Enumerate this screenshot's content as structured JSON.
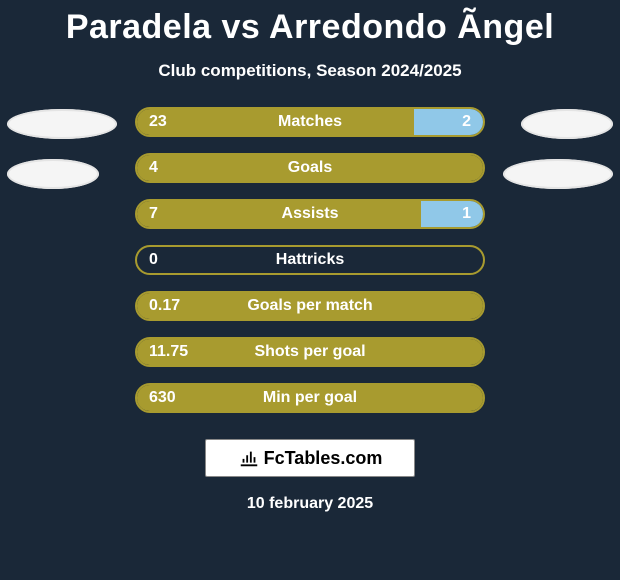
{
  "title": "Paradela vs Arredondo Ãngel",
  "subtitle": "Club competitions, Season 2024/2025",
  "date": "10 february 2025",
  "logo_text": "FcTables.com",
  "colors": {
    "background": "#1a2838",
    "player1_bar": "#a89b2f",
    "player2_bar": "#90c8e8",
    "bar_border_p1wins": "#a89b2f",
    "bar_border_tie": "#a89b2f",
    "text": "#ffffff"
  },
  "bars": [
    {
      "label": "Matches",
      "p1_val": "23",
      "p2_val": "2",
      "p1_width_pct": 80,
      "p2_width_pct": 20,
      "p2_visible": true
    },
    {
      "label": "Goals",
      "p1_val": "4",
      "p2_val": "",
      "p1_width_pct": 100,
      "p2_width_pct": 0,
      "p2_visible": false
    },
    {
      "label": "Assists",
      "p1_val": "7",
      "p2_val": "1",
      "p1_width_pct": 82,
      "p2_width_pct": 18,
      "p2_visible": true
    },
    {
      "label": "Hattricks",
      "p1_val": "0",
      "p2_val": "",
      "p1_width_pct": 0,
      "p2_width_pct": 0,
      "p2_visible": false
    },
    {
      "label": "Goals per match",
      "p1_val": "0.17",
      "p2_val": "",
      "p1_width_pct": 100,
      "p2_width_pct": 0,
      "p2_visible": false
    },
    {
      "label": "Shots per goal",
      "p1_val": "11.75",
      "p2_val": "",
      "p1_width_pct": 100,
      "p2_width_pct": 0,
      "p2_visible": false
    },
    {
      "label": "Min per goal",
      "p1_val": "630",
      "p2_val": "",
      "p1_width_pct": 100,
      "p2_width_pct": 0,
      "p2_visible": false
    }
  ]
}
